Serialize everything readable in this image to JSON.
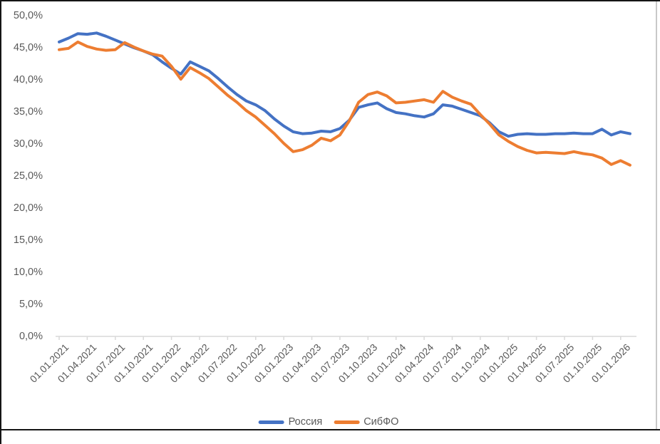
{
  "chart_data": {
    "type": "line",
    "title": "",
    "xlabel": "",
    "ylabel": "",
    "grid": false,
    "legend_position": "bottom",
    "y_axis": {
      "min": 0,
      "max": 50,
      "step": 5,
      "unit": "%",
      "decimal_separator": ","
    },
    "y_tick_labels": [
      "50,0%",
      "45,0%",
      "40,0%",
      "35,0%",
      "30,0%",
      "25,0%",
      "20,0%",
      "15,0%",
      "10,0%",
      "5,0%",
      "0,0%"
    ],
    "x_tick_labels": [
      "01.01.2021",
      "01.04.2021",
      "01.07.2021",
      "01.10.2021",
      "01.01.2022",
      "01.04.2022",
      "01.07.2022",
      "01.10.2022",
      "01.01.2023",
      "01.04.2023",
      "01.07.2023",
      "01.10.2023",
      "01.01.2024",
      "01.04.2024",
      "01.07.2024",
      "01.10.2024",
      "01.01.2025",
      "01.04.2025",
      "01.07.2025",
      "01.10.2025",
      "01.01.2026"
    ],
    "x_frequency": "monthly",
    "x_months_per_tick": 3,
    "series": [
      {
        "name": "Россия",
        "color": "#4472C4",
        "values": [
          45.9,
          46.5,
          47.2,
          47.1,
          47.3,
          46.8,
          46.2,
          45.6,
          45.0,
          44.5,
          43.9,
          42.8,
          41.8,
          40.9,
          42.8,
          42.1,
          41.4,
          40.2,
          38.9,
          37.7,
          36.7,
          36.1,
          35.2,
          33.9,
          32.8,
          31.9,
          31.6,
          31.7,
          32.0,
          31.9,
          32.4,
          33.7,
          35.7,
          36.1,
          36.4,
          35.5,
          34.9,
          34.7,
          34.4,
          34.2,
          34.7,
          36.1,
          35.9,
          35.4,
          34.9,
          34.4,
          33.3,
          31.9,
          31.2,
          31.5,
          31.6,
          31.5,
          31.5,
          31.6,
          31.6,
          31.7,
          31.6,
          31.6,
          32.3,
          31.4,
          31.9,
          31.6
        ]
      },
      {
        "name": "СибФО",
        "color": "#ED7D31",
        "values": [
          44.7,
          44.9,
          45.9,
          45.2,
          44.8,
          44.6,
          44.7,
          45.8,
          45.1,
          44.5,
          44.0,
          43.7,
          42.1,
          40.1,
          41.9,
          41.1,
          40.2,
          38.9,
          37.6,
          36.5,
          35.2,
          34.2,
          32.9,
          31.6,
          30.1,
          28.8,
          29.1,
          29.8,
          30.9,
          30.5,
          31.4,
          33.6,
          36.5,
          37.7,
          38.1,
          37.5,
          36.4,
          36.5,
          36.7,
          36.9,
          36.5,
          38.2,
          37.3,
          36.7,
          36.2,
          34.6,
          33.1,
          31.4,
          30.4,
          29.6,
          29.0,
          28.6,
          28.7,
          28.6,
          28.5,
          28.8,
          28.5,
          28.3,
          27.8,
          26.8,
          27.4,
          26.7
        ]
      }
    ],
    "axis_color": "#D9D9D9",
    "label_color": "#595959"
  }
}
